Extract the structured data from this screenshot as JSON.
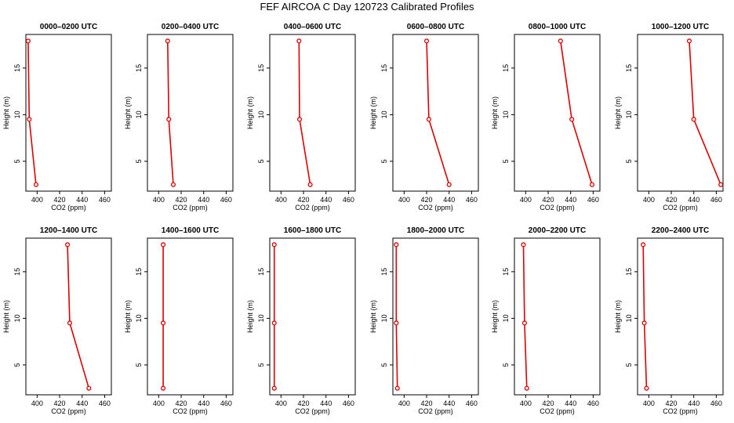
{
  "title": "FEF AIRCOA C  Day 120723  Calibrated Profiles",
  "chart_data": {
    "type": "line",
    "xlabel": "CO2 (ppm)",
    "ylabel": "Height (m)",
    "xlim": [
      390,
      466
    ],
    "ylim": [
      1.8,
      18.6
    ],
    "xticks": [
      400,
      420,
      440,
      460
    ],
    "yticks": [
      5,
      10,
      15
    ],
    "heights": [
      17.9,
      9.5,
      2.5
    ],
    "line_color": "#dd0000",
    "panels": [
      {
        "title": "0000–0200 UTC",
        "values": [
          392,
          393,
          399
        ]
      },
      {
        "title": "0200–0400 UTC",
        "values": [
          408,
          409,
          413
        ]
      },
      {
        "title": "0400–0600 UTC",
        "values": [
          416,
          416.5,
          426
        ]
      },
      {
        "title": "0600–0800 UTC",
        "values": [
          420,
          422,
          440
        ]
      },
      {
        "title": "0800–1000 UTC",
        "values": [
          431,
          441,
          459
        ]
      },
      {
        "title": "1000–1200 UTC",
        "values": [
          436,
          440,
          464
        ]
      },
      {
        "title": "1200–1400 UTC",
        "values": [
          427,
          429,
          446
        ]
      },
      {
        "title": "1400–1600 UTC",
        "values": [
          404,
          404,
          404
        ]
      },
      {
        "title": "1600–1800 UTC",
        "values": [
          394,
          394,
          394
        ]
      },
      {
        "title": "1800–2000 UTC",
        "values": [
          393,
          393,
          394
        ]
      },
      {
        "title": "2000–2200 UTC",
        "values": [
          398,
          399,
          401
        ]
      },
      {
        "title": "2200–2400 UTC",
        "values": [
          395,
          396,
          398
        ]
      }
    ]
  }
}
